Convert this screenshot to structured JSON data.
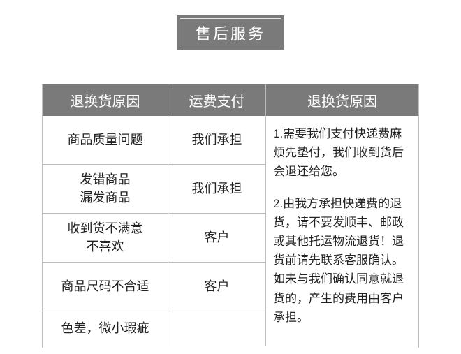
{
  "title": "售后服务",
  "headers": {
    "reason": "退换货原因",
    "shipping": "运费支付",
    "notes": "退换货原因"
  },
  "rows": [
    {
      "reason": "商品质量问题",
      "payer": "我们承担"
    },
    {
      "reason": "发错商品\n漏发商品",
      "payer": "我们承担"
    },
    {
      "reason": "收到货不满意\n不喜欢",
      "payer": "客户"
    },
    {
      "reason": "商品尺码不合适",
      "payer": "客户"
    },
    {
      "reason": "色差，微小瑕疵",
      "payer": ""
    }
  ],
  "notes": [
    "1.需要我们支付快递费麻烦先垫付，我们收到货后会退还给您。",
    "2.由我方承担快递费的退货，请不要发顺丰、邮政或其他托运物流退货！退货前请先联系客服确认。如未与我们确认同意就退货的，产生的费用由客户承担。"
  ],
  "colors": {
    "header_bg": "#7a7a7a",
    "header_text": "#ffffff",
    "border": "#bdbdbd",
    "body_text": "#222222",
    "background": "#ffffff"
  }
}
